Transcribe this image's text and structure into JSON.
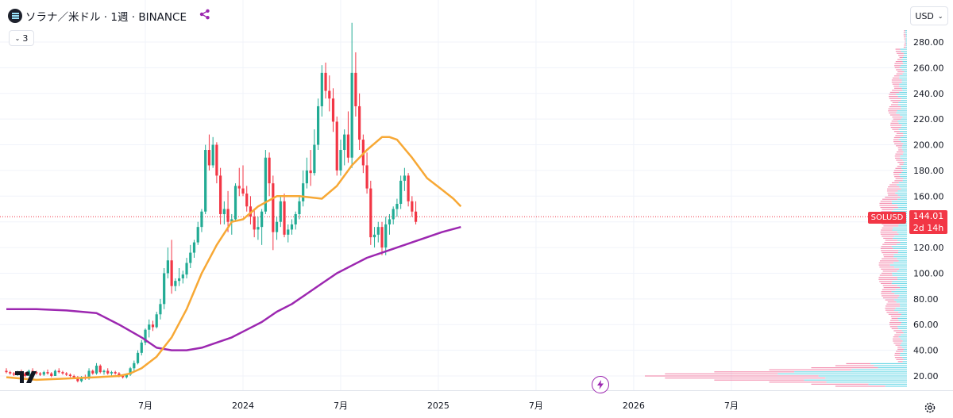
{
  "header": {
    "symbol_title": "ソラナ／米ドル · 1週 · BINANCE",
    "indicators_collapsed_count": "3",
    "currency": "USD"
  },
  "price_tag": {
    "symbol": "SOLUSD",
    "price": "144.01",
    "countdown": "2d 14h"
  },
  "icons": [
    "solana-logo-icon",
    "share-icon",
    "chevron-down-icon",
    "tradingview-logo",
    "flash-icon",
    "settings-icon"
  ],
  "colors": {
    "up": "#22ab94",
    "down": "#f23645",
    "ma_fast": "#f7a835",
    "ma_slow": "#9c27b0",
    "volume_profile_up": "#4dd0e1",
    "volume_profile_down": "#f06292"
  },
  "chart_data": {
    "type": "candlestick",
    "interval": "1W",
    "y_axis": {
      "ticks": [
        "20.00",
        "40.00",
        "60.00",
        "80.00",
        "100.00",
        "120.00",
        "140.00",
        "160.00",
        "180.00",
        "200.00",
        "220.00",
        "240.00",
        "260.00",
        "280.00"
      ],
      "range": [
        8,
        292
      ],
      "position": "right"
    },
    "x_axis": {
      "ticks": [
        {
          "label": "7月",
          "week": 37
        },
        {
          "label": "2024",
          "week": 63
        },
        {
          "label": "7月",
          "week": 89
        },
        {
          "label": "2025",
          "week": 115
        },
        {
          "label": "7月",
          "week": 141
        },
        {
          "label": "2026",
          "week": 167
        },
        {
          "label": "7月",
          "week": 193
        }
      ]
    },
    "last_price": 144.01,
    "candles": [
      [
        24,
        26,
        22,
        23
      ],
      [
        23,
        24,
        21,
        22
      ],
      [
        22,
        23,
        20,
        21
      ],
      [
        21,
        24,
        20,
        23
      ],
      [
        23,
        25,
        21,
        22
      ],
      [
        22,
        23,
        19,
        20
      ],
      [
        20,
        25,
        20,
        24
      ],
      [
        24,
        26,
        22,
        23
      ],
      [
        23,
        24,
        21,
        22
      ],
      [
        22,
        23,
        20,
        21
      ],
      [
        21,
        24,
        20,
        23
      ],
      [
        23,
        25,
        21,
        22
      ],
      [
        22,
        23,
        19,
        20
      ],
      [
        20,
        25,
        20,
        24
      ],
      [
        24,
        26,
        22,
        23
      ],
      [
        23,
        24,
        21,
        22
      ],
      [
        22,
        23,
        20,
        21
      ],
      [
        21,
        22,
        19,
        20
      ],
      [
        20,
        21,
        18,
        19
      ],
      [
        19,
        20,
        15,
        16
      ],
      [
        16,
        20,
        15,
        19
      ],
      [
        19,
        21,
        17,
        18
      ],
      [
        18,
        26,
        17,
        24
      ],
      [
        24,
        25,
        21,
        22
      ],
      [
        22,
        30,
        21,
        28
      ],
      [
        28,
        29,
        22,
        23
      ],
      [
        23,
        25,
        21,
        24
      ],
      [
        24,
        26,
        21,
        22
      ],
      [
        22,
        24,
        20,
        23
      ],
      [
        23,
        24,
        21,
        22
      ],
      [
        22,
        23,
        19,
        20
      ],
      [
        20,
        21,
        18,
        19
      ],
      [
        19,
        22,
        18,
        21
      ],
      [
        21,
        27,
        20,
        26
      ],
      [
        26,
        32,
        24,
        30
      ],
      [
        30,
        40,
        29,
        38
      ],
      [
        38,
        48,
        36,
        46
      ],
      [
        46,
        57,
        44,
        56
      ],
      [
        56,
        64,
        50,
        60
      ],
      [
        60,
        63,
        55,
        58
      ],
      [
        58,
        70,
        57,
        68
      ],
      [
        68,
        80,
        64,
        76
      ],
      [
        76,
        104,
        72,
        100
      ],
      [
        100,
        120,
        96,
        110
      ],
      [
        110,
        126,
        84,
        90
      ],
      [
        90,
        96,
        86,
        94
      ],
      [
        94,
        104,
        90,
        96
      ],
      [
        96,
        102,
        92,
        99
      ],
      [
        99,
        112,
        96,
        108
      ],
      [
        108,
        122,
        104,
        116
      ],
      [
        116,
        126,
        112,
        124
      ],
      [
        124,
        140,
        122,
        136
      ],
      [
        136,
        150,
        132,
        148
      ],
      [
        148,
        200,
        146,
        196
      ],
      [
        196,
        208,
        180,
        184
      ],
      [
        184,
        206,
        182,
        200
      ],
      [
        200,
        202,
        170,
        176
      ],
      [
        176,
        182,
        138,
        146
      ],
      [
        146,
        156,
        138,
        150
      ],
      [
        150,
        164,
        132,
        140
      ],
      [
        140,
        146,
        130,
        142
      ],
      [
        142,
        170,
        140,
        168
      ],
      [
        168,
        182,
        160,
        166
      ],
      [
        166,
        184,
        160,
        162
      ],
      [
        162,
        168,
        148,
        152
      ],
      [
        152,
        160,
        138,
        144
      ],
      [
        144,
        150,
        128,
        134
      ],
      [
        134,
        144,
        126,
        136
      ],
      [
        136,
        150,
        122,
        148
      ],
      [
        148,
        196,
        146,
        190
      ],
      [
        190,
        194,
        160,
        170
      ],
      [
        170,
        176,
        118,
        132
      ],
      [
        132,
        144,
        126,
        140
      ],
      [
        140,
        160,
        136,
        156
      ],
      [
        156,
        162,
        128,
        130
      ],
      [
        130,
        138,
        124,
        134
      ],
      [
        134,
        142,
        130,
        138
      ],
      [
        138,
        148,
        134,
        146
      ],
      [
        146,
        160,
        142,
        156
      ],
      [
        156,
        180,
        152,
        170
      ],
      [
        170,
        190,
        166,
        180
      ],
      [
        180,
        196,
        168,
        178
      ],
      [
        178,
        212,
        176,
        200
      ],
      [
        200,
        236,
        196,
        230
      ],
      [
        230,
        262,
        222,
        256
      ],
      [
        256,
        264,
        236,
        242
      ],
      [
        242,
        254,
        226,
        236
      ],
      [
        236,
        244,
        210,
        218
      ],
      [
        218,
        222,
        176,
        180
      ],
      [
        180,
        204,
        176,
        196
      ],
      [
        196,
        212,
        184,
        208
      ],
      [
        208,
        226,
        186,
        190
      ],
      [
        190,
        295,
        182,
        256
      ],
      [
        256,
        272,
        222,
        230
      ],
      [
        230,
        240,
        196,
        204
      ],
      [
        204,
        208,
        178,
        184
      ],
      [
        184,
        194,
        162,
        166
      ],
      [
        166,
        172,
        122,
        128
      ],
      [
        128,
        136,
        120,
        130
      ],
      [
        130,
        140,
        124,
        136
      ],
      [
        136,
        140,
        114,
        120
      ],
      [
        120,
        144,
        114,
        138
      ],
      [
        138,
        146,
        130,
        142
      ],
      [
        142,
        152,
        138,
        150
      ],
      [
        150,
        158,
        144,
        154
      ],
      [
        154,
        176,
        150,
        172
      ],
      [
        172,
        182,
        164,
        176
      ],
      [
        176,
        178,
        152,
        156
      ],
      [
        156,
        160,
        144,
        148
      ],
      [
        148,
        156,
        138,
        140
      ]
    ],
    "series": [
      {
        "type": "line",
        "values": [
          [
            0,
            19
          ],
          [
            8,
            17
          ],
          [
            16,
            18
          ],
          [
            24,
            19
          ],
          [
            30,
            20
          ],
          [
            33,
            22
          ],
          [
            36,
            26
          ],
          [
            40,
            35
          ],
          [
            44,
            50
          ],
          [
            48,
            72
          ],
          [
            52,
            100
          ],
          [
            56,
            122
          ],
          [
            60,
            140
          ],
          [
            63,
            142
          ],
          [
            67,
            152
          ],
          [
            72,
            160
          ],
          [
            78,
            160
          ],
          [
            84,
            158
          ],
          [
            88,
            168
          ],
          [
            92,
            184
          ],
          [
            96,
            196
          ],
          [
            100,
            206
          ],
          [
            102,
            206
          ],
          [
            104,
            204
          ],
          [
            108,
            190
          ],
          [
            112,
            174
          ],
          [
            116,
            165
          ],
          [
            119,
            158
          ],
          [
            121,
            152
          ]
        ]
      },
      {
        "type": "line",
        "values": [
          [
            0,
            72
          ],
          [
            8,
            72
          ],
          [
            16,
            71
          ],
          [
            24,
            69
          ],
          [
            30,
            60
          ],
          [
            36,
            50
          ],
          [
            40,
            42
          ],
          [
            44,
            40
          ],
          [
            48,
            40
          ],
          [
            52,
            42
          ],
          [
            56,
            46
          ],
          [
            60,
            50
          ],
          [
            64,
            56
          ],
          [
            68,
            62
          ],
          [
            72,
            70
          ],
          [
            76,
            76
          ],
          [
            80,
            84
          ],
          [
            84,
            92
          ],
          [
            88,
            100
          ],
          [
            92,
            106
          ],
          [
            96,
            112
          ],
          [
            100,
            116
          ],
          [
            104,
            120
          ],
          [
            108,
            124
          ],
          [
            112,
            128
          ],
          [
            116,
            132
          ],
          [
            121,
            136
          ]
        ]
      }
    ]
  }
}
